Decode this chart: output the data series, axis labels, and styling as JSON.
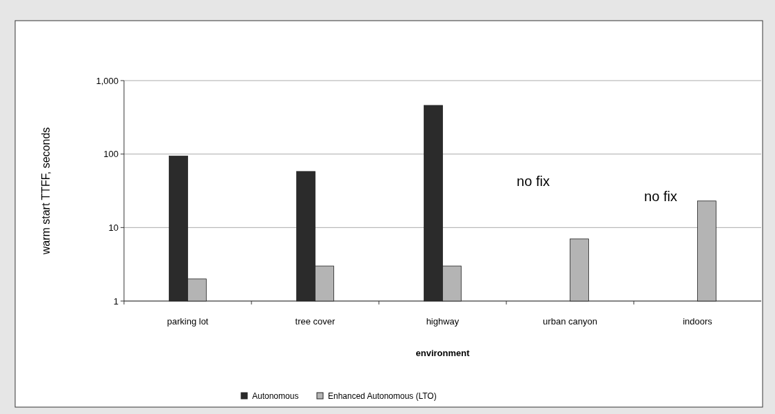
{
  "chart_data": {
    "type": "bar",
    "xlabel": "environment",
    "ylabel": "warm start TTFF, seconds",
    "categories": [
      "parking lot",
      "tree cover",
      "highway",
      "urban canyon",
      "indoors"
    ],
    "series": [
      {
        "name": "Autonomous",
        "color": "#2b2b2b",
        "values": [
          94,
          58,
          460,
          null,
          null
        ]
      },
      {
        "name": "Enhanced Autonomous (LTO)",
        "color": "#b4b4b4",
        "values": [
          2,
          3,
          3,
          7,
          23
        ]
      }
    ],
    "log": true,
    "ylim": [
      1,
      1000
    ],
    "yticks": [
      1,
      10,
      100,
      {
        "value": 1000,
        "label": "1,000"
      }
    ],
    "grid": "y",
    "legend": "bottom",
    "annotations": [
      "no fix",
      "no fix"
    ]
  }
}
